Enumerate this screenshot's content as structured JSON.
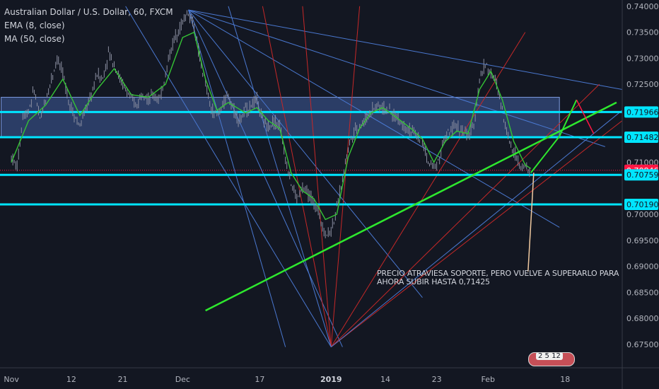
{
  "legend": {
    "symbol": "Australian Dollar / U.S. Dollar, 60, FXCM",
    "ema": "EMA (8, close)",
    "ma": "MA (50, close)"
  },
  "annotation": {
    "line1": "PRECIO ATRAVIESA SOPORTE, PERO VUELVE A SUPERARLO PARA",
    "line2": "AHORA SUBIR HASTA 0,71425"
  },
  "event_badge": "2 5 12",
  "colors": {
    "background": "#131722",
    "candles": "#8a8ea0",
    "ema": "#35c435",
    "zone": "#3f5d9e",
    "level": "#00e5ff",
    "fib_red": "#c62828",
    "fib_blue": "#4a78d0",
    "trend_green": "#2ee82e",
    "current_label": "#ff1744",
    "arrow_tan": "#f0c9a0"
  },
  "chart_data": {
    "type": "line",
    "ylim": [
      0.6705,
      0.7412
    ],
    "ytick_labels": [
      "0.74000",
      "0.73500",
      "0.73000",
      "0.72500",
      "0.71966",
      "0.71482",
      "0.71000",
      "0.70846",
      "0.70759",
      "0.70190",
      "0.70000",
      "0.69500",
      "0.69000",
      "0.68500",
      "0.68000",
      "0.67500"
    ],
    "ytick_values": [
      0.74,
      0.735,
      0.73,
      0.725,
      0.71966,
      0.71482,
      0.71,
      0.70846,
      0.70759,
      0.7019,
      0.7,
      0.695,
      0.69,
      0.685,
      0.68,
      0.675
    ],
    "x_labels": [
      "Nov",
      "12",
      "21",
      "Dec",
      "17",
      "2019",
      "14",
      "23",
      "Feb",
      "18"
    ],
    "x_label_positions": [
      0.0,
      10.5,
      19.5,
      30.0,
      43.5,
      56.0,
      65.5,
      74.5,
      83.5,
      97.0
    ],
    "xlim": [
      -2.0,
      107.0
    ],
    "price_path": [
      [
        0,
        0.711
      ],
      [
        1,
        0.709
      ],
      [
        2,
        0.719
      ],
      [
        3,
        0.72
      ],
      [
        4,
        0.724
      ],
      [
        5,
        0.718
      ],
      [
        6,
        0.722
      ],
      [
        7,
        0.726
      ],
      [
        8,
        0.73
      ],
      [
        9,
        0.727
      ],
      [
        10,
        0.722
      ],
      [
        11,
        0.719
      ],
      [
        12,
        0.717
      ],
      [
        13,
        0.72
      ],
      [
        14,
        0.723
      ],
      [
        15,
        0.727
      ],
      [
        16,
        0.726
      ],
      [
        17,
        0.731
      ],
      [
        18,
        0.729
      ],
      [
        19,
        0.726
      ],
      [
        20,
        0.724
      ],
      [
        21,
        0.722
      ],
      [
        22,
        0.721
      ],
      [
        23,
        0.724
      ],
      [
        24,
        0.722
      ],
      [
        25,
        0.723
      ],
      [
        26,
        0.722
      ],
      [
        27,
        0.727
      ],
      [
        28,
        0.732
      ],
      [
        29,
        0.735
      ],
      [
        30,
        0.737
      ],
      [
        31,
        0.739
      ],
      [
        32,
        0.736
      ],
      [
        33,
        0.73
      ],
      [
        34,
        0.725
      ],
      [
        35,
        0.72
      ],
      [
        36,
        0.719
      ],
      [
        37,
        0.721
      ],
      [
        38,
        0.723
      ],
      [
        39,
        0.72
      ],
      [
        40,
        0.718
      ],
      [
        41,
        0.72
      ],
      [
        42,
        0.721
      ],
      [
        43,
        0.722
      ],
      [
        44,
        0.718
      ],
      [
        45,
        0.717
      ],
      [
        46,
        0.718
      ],
      [
        47,
        0.717
      ],
      [
        48,
        0.711
      ],
      [
        49,
        0.706
      ],
      [
        50,
        0.703
      ],
      [
        51,
        0.705
      ],
      [
        52,
        0.704
      ],
      [
        53,
        0.702
      ],
      [
        54,
        0.7
      ],
      [
        55,
        0.696
      ],
      [
        56,
        0.697
      ],
      [
        57,
        0.701
      ],
      [
        58,
        0.707
      ],
      [
        59,
        0.713
      ],
      [
        60,
        0.716
      ],
      [
        61,
        0.717
      ],
      [
        62,
        0.718
      ],
      [
        63,
        0.72
      ],
      [
        64,
        0.721
      ],
      [
        65,
        0.7205
      ],
      [
        66,
        0.72
      ],
      [
        67,
        0.719
      ],
      [
        68,
        0.718
      ],
      [
        69,
        0.717
      ],
      [
        70,
        0.716
      ],
      [
        71,
        0.715
      ],
      [
        72,
        0.714
      ],
      [
        73,
        0.71
      ],
      [
        74,
        0.709
      ],
      [
        75,
        0.711
      ],
      [
        76,
        0.715
      ],
      [
        77,
        0.716
      ],
      [
        78,
        0.717
      ],
      [
        79,
        0.716
      ],
      [
        80,
        0.715
      ],
      [
        81,
        0.717
      ],
      [
        82,
        0.726
      ],
      [
        83,
        0.729
      ],
      [
        84,
        0.727
      ],
      [
        85,
        0.725
      ],
      [
        86,
        0.72
      ],
      [
        87,
        0.715
      ],
      [
        88,
        0.712
      ],
      [
        89,
        0.71
      ],
      [
        90,
        0.709
      ],
      [
        91,
        0.708
      ]
    ],
    "ema_path": [
      [
        0,
        0.71
      ],
      [
        3,
        0.718
      ],
      [
        6,
        0.721
      ],
      [
        9,
        0.726
      ],
      [
        12,
        0.719
      ],
      [
        15,
        0.724
      ],
      [
        18,
        0.728
      ],
      [
        21,
        0.723
      ],
      [
        24,
        0.7225
      ],
      [
        27,
        0.725
      ],
      [
        30,
        0.734
      ],
      [
        32,
        0.735
      ],
      [
        34,
        0.726
      ],
      [
        36,
        0.72
      ],
      [
        38,
        0.7215
      ],
      [
        41,
        0.7195
      ],
      [
        43,
        0.7205
      ],
      [
        45,
        0.718
      ],
      [
        47,
        0.7165
      ],
      [
        49,
        0.708
      ],
      [
        51,
        0.7045
      ],
      [
        53,
        0.703
      ],
      [
        55,
        0.699
      ],
      [
        57,
        0.7
      ],
      [
        59,
        0.711
      ],
      [
        61,
        0.7165
      ],
      [
        63,
        0.7195
      ],
      [
        65,
        0.7205
      ],
      [
        67,
        0.719
      ],
      [
        70,
        0.7165
      ],
      [
        72,
        0.7145
      ],
      [
        74,
        0.71
      ],
      [
        76,
        0.714
      ],
      [
        78,
        0.716
      ],
      [
        80,
        0.7155
      ],
      [
        82,
        0.724
      ],
      [
        84,
        0.7275
      ],
      [
        86,
        0.722
      ],
      [
        88,
        0.714
      ],
      [
        90,
        0.7095
      ],
      [
        91,
        0.7088
      ]
    ],
    "support_zone": [
      0.71482,
      0.7225
    ],
    "horizontal_levels": [
      0.71966,
      0.71482,
      0.70759,
      0.7019
    ],
    "current_price": 0.70846,
    "fan_origins": [
      [
        31,
        0.7393
      ],
      [
        56,
        0.6745
      ]
    ],
    "green_trendline": [
      [
        34,
        0.6815
      ],
      [
        106,
        0.7215
      ]
    ],
    "projection": [
      [
        91,
        0.708
      ],
      [
        96,
        0.715
      ],
      [
        99,
        0.722
      ],
      [
        102,
        0.7155
      ]
    ]
  }
}
